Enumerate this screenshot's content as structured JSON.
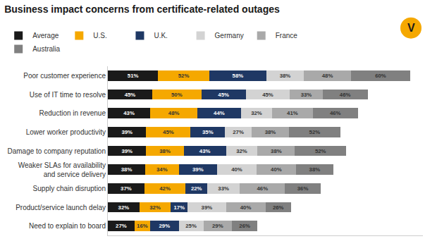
{
  "chart_data": {
    "type": "bar",
    "orientation": "horizontal",
    "stacked": true,
    "data_labels": true,
    "title": "Business impact concerns from certificate-related outages",
    "categories": [
      "Poor customer experience",
      "Use of IT time to resolve",
      "Reduction in revenue",
      "Lower worker productivity",
      "Damage to company reputation",
      "Weaker SLAs for availability\nand service delivery",
      "Supply chain disruption",
      "Product/service launch delay",
      "Need to explain to board"
    ],
    "series": [
      {
        "name": "Average",
        "color": "#1a1a1a",
        "values": [
          51,
          45,
          43,
          39,
          39,
          38,
          37,
          32,
          27
        ],
        "value_labels": [
          "51%",
          "45%",
          "43%",
          "39%",
          "39%",
          "38%",
          "37%",
          "32%",
          "27%"
        ]
      },
      {
        "name": "U.S.",
        "color": "#f5a800",
        "values": [
          52,
          50,
          48,
          45,
          38,
          34,
          42,
          32,
          16
        ],
        "value_labels": [
          "52%",
          "50%",
          "48%",
          "45%",
          "38%",
          "34%",
          "42%",
          "32%",
          "16%"
        ]
      },
      {
        "name": "U.K.",
        "color": "#1f3864",
        "values": [
          58,
          45,
          44,
          35,
          43,
          39,
          22,
          17,
          29
        ],
        "value_labels": [
          "58%",
          "45%",
          "44%",
          "35%",
          "43%",
          "39%",
          "22%",
          "17%",
          "29%"
        ]
      },
      {
        "name": "Germany",
        "color": "#d3d3d3",
        "values": [
          38,
          45,
          32,
          27,
          32,
          40,
          33,
          39,
          25
        ],
        "value_labels": [
          "38%",
          "45%",
          "32%",
          "27%",
          "32%",
          "40%",
          "33%",
          "39%",
          "25%"
        ]
      },
      {
        "name": "France",
        "color": "#a9a9a9",
        "values": [
          48,
          33,
          41,
          38,
          38,
          40,
          46,
          40,
          29
        ],
        "value_labels": [
          "48%",
          "33%",
          "41%",
          "38%",
          "38%",
          "40%",
          "46%",
          "40%",
          "29%"
        ]
      },
      {
        "name": "Australia",
        "color": "#808080",
        "values": [
          60,
          46,
          46,
          52,
          52,
          38,
          36,
          26,
          26
        ],
        "value_labels": [
          "60%",
          "46%",
          "46%",
          "52%",
          "52%",
          "38%",
          "36%",
          "26%",
          "26%"
        ]
      }
    ],
    "xlim": [
      0,
      320
    ],
    "grid": false,
    "legend": "upper left",
    "tick_labels": "y",
    "annotations": [
      {
        "text": "V",
        "color": "#f5a800"
      }
    ]
  }
}
